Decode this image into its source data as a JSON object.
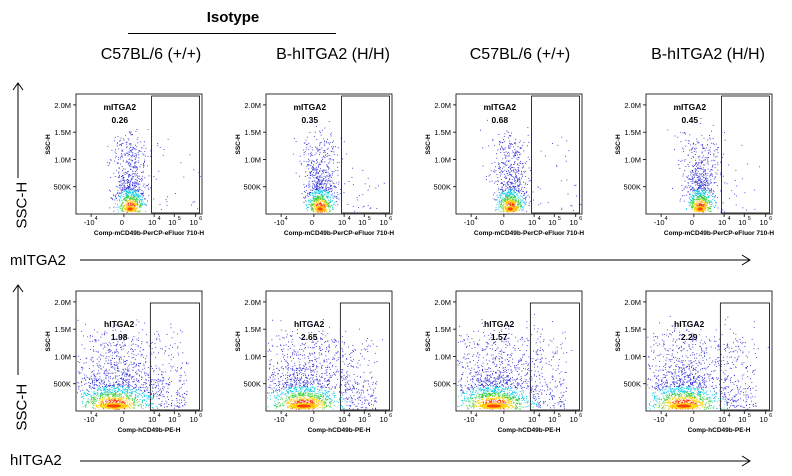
{
  "group_label": "Isotype",
  "column_headers": [
    "C57BL/6 (+/+)",
    "B-hITGA2 (H/H)",
    "C57BL/6 (+/+)",
    "B-hITGA2 (H/H)"
  ],
  "rows": [
    {
      "axis_label": "mITGA2",
      "y_axis_side_label": "SSC-H"
    },
    {
      "axis_label": "hITGA2",
      "y_axis_side_label": "SSC-H"
    }
  ],
  "chart_data": [
    {
      "type": "scatter",
      "row": 1,
      "column": 1,
      "column_header": "C57BL/6 (+/+)",
      "gate_label": "mITGA2",
      "gate_value": "0.26",
      "xlabel": "Comp-mCD49b-PerCP-eFluor 710-H",
      "ylabel": "SSC-H",
      "x_ticks": [
        "-10",
        "0",
        "10",
        "10",
        "10"
      ],
      "x_tick_exponents": [
        "4",
        "",
        "4",
        "5",
        "6"
      ],
      "y_ticks": [
        "500K",
        "1.0M",
        "1.5M",
        "2.0M"
      ],
      "ylim": [
        0,
        2200000
      ]
    },
    {
      "type": "scatter",
      "row": 1,
      "column": 2,
      "column_header": "B-hITGA2 (H/H)",
      "gate_label": "mITGA2",
      "gate_value": "0.35",
      "xlabel": "Comp-mCD49b-PerCP-eFluor 710-H",
      "ylabel": "SSC-H",
      "x_ticks": [
        "-10",
        "0",
        "10",
        "10",
        "10"
      ],
      "x_tick_exponents": [
        "4",
        "",
        "4",
        "5",
        "6"
      ],
      "y_ticks": [
        "500K",
        "1.0M",
        "1.5M",
        "2.0M"
      ],
      "ylim": [
        0,
        2200000
      ]
    },
    {
      "type": "scatter",
      "row": 1,
      "column": 3,
      "column_header": "C57BL/6 (+/+)",
      "gate_label": "mITGA2",
      "gate_value": "0.68",
      "xlabel": "Comp-mCD49b-PerCP-eFluor 710-H",
      "ylabel": "SSC-H",
      "x_ticks": [
        "-10",
        "0",
        "10",
        "10",
        "10"
      ],
      "x_tick_exponents": [
        "4",
        "",
        "4",
        "5",
        "6"
      ],
      "y_ticks": [
        "500K",
        "1.0M",
        "1.5M",
        "2.0M"
      ],
      "ylim": [
        0,
        2200000
      ]
    },
    {
      "type": "scatter",
      "row": 1,
      "column": 4,
      "column_header": "B-hITGA2 (H/H)",
      "gate_label": "mITGA2",
      "gate_value": "0.45",
      "xlabel": "Comp-mCD49b-PerCP-eFluor 710-H",
      "ylabel": "SSC-H",
      "x_ticks": [
        "-10",
        "0",
        "10",
        "10",
        "10"
      ],
      "x_tick_exponents": [
        "4",
        "",
        "4",
        "5",
        "6"
      ],
      "y_ticks": [
        "500K",
        "1.0M",
        "1.5M",
        "2.0M"
      ],
      "ylim": [
        0,
        2200000
      ]
    },
    {
      "type": "scatter",
      "row": 2,
      "column": 1,
      "column_header": "C57BL/6 (+/+)",
      "gate_label": "hITGA2",
      "gate_value": "1.98",
      "xlabel": "Comp-hCD49b-PE-H",
      "ylabel": "SSC-H",
      "x_ticks": [
        "-10",
        "0",
        "10",
        "10",
        "10"
      ],
      "x_tick_exponents": [
        "4",
        "",
        "4",
        "5",
        "6"
      ],
      "y_ticks": [
        "500K",
        "1.0M",
        "1.5M",
        "2.0M"
      ],
      "ylim": [
        0,
        2200000
      ]
    },
    {
      "type": "scatter",
      "row": 2,
      "column": 2,
      "column_header": "B-hITGA2 (H/H)",
      "gate_label": "hITGA2",
      "gate_value": "2.65",
      "xlabel": "Comp-hCD49b-PE-H",
      "ylabel": "SSC-H",
      "x_ticks": [
        "-10",
        "0",
        "10",
        "10",
        "10"
      ],
      "x_tick_exponents": [
        "4",
        "",
        "4",
        "5",
        "6"
      ],
      "y_ticks": [
        "500K",
        "1.0M",
        "1.5M",
        "2.0M"
      ],
      "ylim": [
        0,
        2200000
      ]
    },
    {
      "type": "scatter",
      "row": 2,
      "column": 3,
      "column_header": "C57BL/6 (+/+)",
      "gate_label": "hITGA2",
      "gate_value": "1.57",
      "xlabel": "Comp-hCD49b-PE-H",
      "ylabel": "SSC-H",
      "x_ticks": [
        "-10",
        "0",
        "10",
        "10",
        "10"
      ],
      "x_tick_exponents": [
        "4",
        "",
        "4",
        "5",
        "6"
      ],
      "y_ticks": [
        "500K",
        "1.0M",
        "1.5M",
        "2.0M"
      ],
      "ylim": [
        0,
        2200000
      ]
    },
    {
      "type": "scatter",
      "row": 2,
      "column": 4,
      "column_header": "B-hITGA2 (H/H)",
      "gate_label": "hITGA2",
      "gate_value": "2.29",
      "xlabel": "Comp-hCD49b-PE-H",
      "ylabel": "SSC-H",
      "x_ticks": [
        "-10",
        "0",
        "10",
        "10",
        "10"
      ],
      "x_tick_exponents": [
        "4",
        "",
        "4",
        "5",
        "6"
      ],
      "y_ticks": [
        "500K",
        "1.0M",
        "1.5M",
        "2.0M"
      ],
      "ylim": [
        0,
        2200000
      ]
    }
  ]
}
